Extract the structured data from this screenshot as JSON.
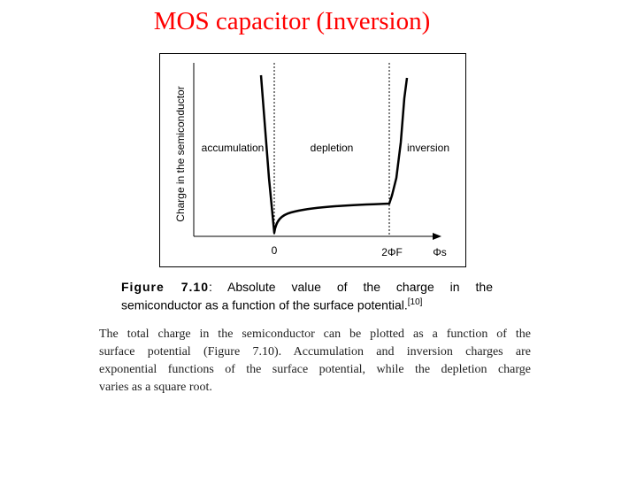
{
  "slide": {
    "title": "MOS capacitor (Inversion)"
  },
  "figure": {
    "ylabel": "Charge in the semiconductor",
    "region_labels": [
      "accumulation",
      "depletion",
      "inversion"
    ],
    "x_ticks": [
      "0",
      "2ΦF"
    ],
    "x_axis_label": "Φs",
    "caption_label": "Figure 7.10",
    "caption_line1_tail": ": Absolute value of the charge in the",
    "caption_line2": "semiconductor as a function of the surface potential.",
    "caption_ref": "[10]"
  },
  "body_text": {
    "lines": [
      "The total charge in the semiconductor can be plotted as a function of the",
      "surface potential (Figure 7.10). Accumulation and inversion charges are",
      "exponential functions of the surface potential, while the depletion charge",
      "varies as a square root."
    ]
  },
  "colors": {
    "title": "#ff0000",
    "ink": "#000000"
  }
}
